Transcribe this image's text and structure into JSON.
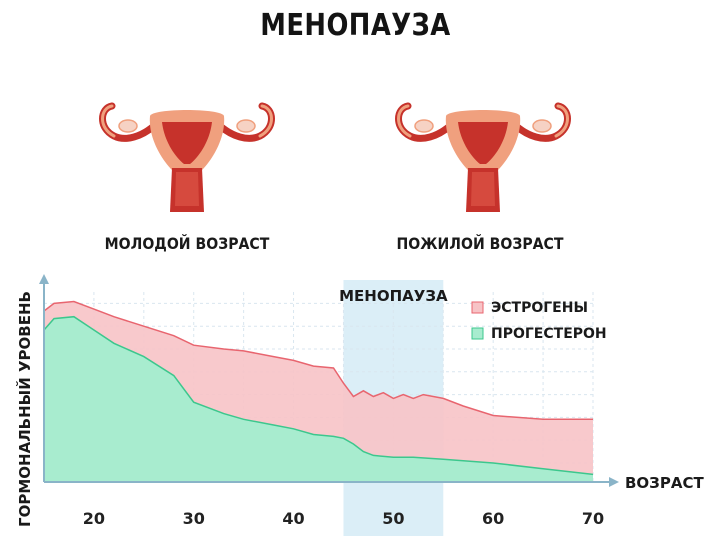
{
  "title": "МЕНОПАУЗА",
  "illustrations": [
    {
      "caption": "МОЛОДОЙ ВОЗРАСТ",
      "icon": "uterus-icon"
    },
    {
      "caption": "ПОЖИЛОЙ ВОЗРАСТ",
      "icon": "uterus-icon"
    }
  ],
  "colors": {
    "estrogen_fill": "#f7c3c6",
    "estrogen_line": "#e8656f",
    "progesterone_fill": "#a8eccf",
    "progesterone_line": "#3cc78d",
    "menopause_band": "#cfe8f4",
    "axis": "#8ab4c8",
    "grid": "#d9e6ef",
    "organ_dark": "#c6322b",
    "organ_light": "#f0a07e"
  },
  "chart_data": {
    "type": "area",
    "xlabel": "ВОЗРАСТ",
    "ylabel": "ГОРМОНАЛЬНЫЙ УРОВЕНЬ",
    "xlim": [
      15,
      70
    ],
    "ylim": [
      0,
      100
    ],
    "xticks": [
      20,
      30,
      40,
      50,
      60,
      70
    ],
    "grid": true,
    "legend_position": "top-right",
    "highlight": {
      "label": "МЕНОПАУЗА",
      "range": [
        45,
        55
      ]
    },
    "series": [
      {
        "name": "ЭСТРОГЕНЫ",
        "x": [
          15,
          16,
          18,
          20,
          22,
          25,
          28,
          30,
          33,
          35,
          38,
          40,
          42,
          44,
          45,
          46,
          47,
          48,
          49,
          50,
          51,
          52,
          53,
          55,
          57,
          60,
          65,
          70
        ],
        "y": [
          90,
          94,
          95,
          91,
          87,
          82,
          77,
          72,
          70,
          69,
          66,
          64,
          61,
          60,
          52,
          45,
          48,
          45,
          47,
          44,
          46,
          44,
          46,
          44,
          40,
          35,
          33,
          33
        ]
      },
      {
        "name": "ПРОГЕСТЕРОН",
        "x": [
          15,
          16,
          18,
          20,
          22,
          25,
          28,
          30,
          33,
          35,
          38,
          40,
          42,
          44,
          45,
          46,
          47,
          48,
          50,
          52,
          55,
          60,
          65,
          70
        ],
        "y": [
          80,
          86,
          87,
          80,
          73,
          66,
          56,
          42,
          36,
          33,
          30,
          28,
          25,
          24,
          23,
          20,
          16,
          14,
          13,
          13,
          12,
          10,
          7,
          4
        ]
      }
    ]
  }
}
